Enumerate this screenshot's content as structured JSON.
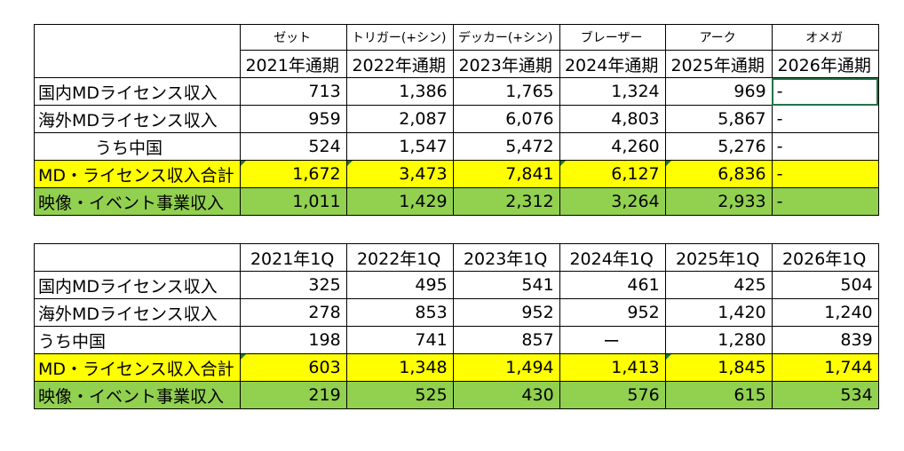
{
  "table_annual": {
    "series": [
      "ゼット",
      "トリガー(+シン)",
      "デッカー(+シン)",
      "ブレーザー",
      "アーク",
      "オメガ"
    ],
    "periods": [
      "2021年通期",
      "2022年通期",
      "2023年通期",
      "2024年通期",
      "2025年通期",
      "2026年通期"
    ],
    "rows": [
      {
        "label": "国内MDライセンス収入",
        "values": [
          "713",
          "1,386",
          "1,765",
          "1,324",
          "969",
          "-"
        ]
      },
      {
        "label": "海外MDライセンス収入",
        "values": [
          "959",
          "2,087",
          "6,076",
          "4,803",
          "5,867",
          "-"
        ]
      },
      {
        "label": "うち中国",
        "values": [
          "524",
          "1,547",
          "5,472",
          "4,260",
          "5,276",
          "-"
        ]
      },
      {
        "label": "MD・ライセンス収入合計",
        "values": [
          "1,672",
          "3,473",
          "7,841",
          "6,127",
          "6,836",
          "-"
        ]
      },
      {
        "label": "映像・イベント事業収入",
        "values": [
          "1,011",
          "1,429",
          "2,312",
          "3,264",
          "2,933",
          "-"
        ]
      }
    ]
  },
  "table_q1": {
    "periods": [
      "2021年1Q",
      "2022年1Q",
      "2023年1Q",
      "2024年1Q",
      "2025年1Q",
      "2026年1Q"
    ],
    "rows": [
      {
        "label": "国内MDライセンス収入",
        "values": [
          "325",
          "495",
          "541",
          "461",
          "425",
          "504"
        ]
      },
      {
        "label": "海外MDライセンス収入",
        "values": [
          "278",
          "853",
          "952",
          "952",
          "1,420",
          "1,240"
        ]
      },
      {
        "label": "うち中国",
        "values": [
          "198",
          "741",
          "857",
          "ー",
          "1,280",
          "839"
        ]
      },
      {
        "label": "MD・ライセンス収入合計",
        "values": [
          "603",
          "1,348",
          "1,494",
          "1,413",
          "1,845",
          "1,744"
        ]
      },
      {
        "label": "映像・イベント事業収入",
        "values": [
          "219",
          "525",
          "430",
          "576",
          "615",
          "534"
        ]
      }
    ]
  },
  "colors": {
    "total_row": "#ffff00",
    "video_row": "#92d050",
    "selection": "#217346"
  }
}
